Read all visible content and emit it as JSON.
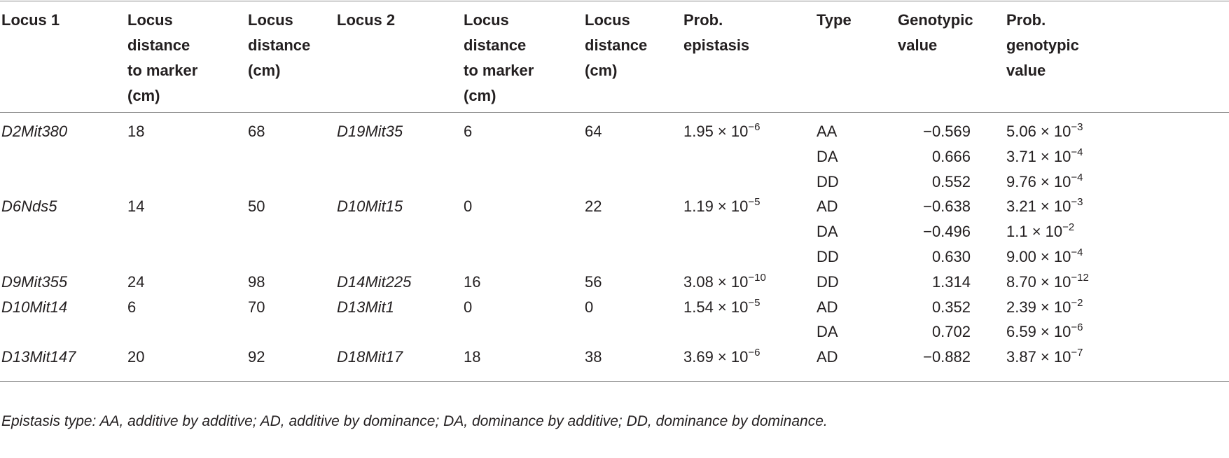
{
  "table": {
    "header": [
      [
        "Locus 1"
      ],
      [
        "Locus",
        "distance",
        "to marker",
        "(cm)"
      ],
      [
        "Locus",
        "distance",
        "(cm)"
      ],
      [
        "Locus 2"
      ],
      [
        "Locus",
        "distance",
        "to marker",
        "(cm)"
      ],
      [
        "Locus",
        "distance",
        "(cm)"
      ],
      [
        "Prob.",
        "epistasis"
      ],
      [
        "Type"
      ],
      [
        "Genotypic",
        "value"
      ],
      [
        "Prob.",
        "genotypic",
        "value"
      ]
    ],
    "groups": [
      {
        "locus1": "D2Mit380",
        "dist1": "18",
        "locdist1": "68",
        "locus2": "D19Mit35",
        "dist2": "6",
        "locdist2": "64",
        "prob_epistasis": {
          "base": "1.95 × 10",
          "exp": "−6"
        },
        "effects": [
          {
            "type": "AA",
            "value": "−0.569",
            "prob": {
              "base": "5.06 × 10",
              "exp": "−3"
            }
          },
          {
            "type": "DA",
            "value": "0.666",
            "prob": {
              "base": "3.71 × 10",
              "exp": "−4"
            }
          },
          {
            "type": "DD",
            "value": "0.552",
            "prob": {
              "base": "9.76 × 10",
              "exp": "−4"
            }
          }
        ]
      },
      {
        "locus1": "D6Nds5",
        "dist1": "14",
        "locdist1": "50",
        "locus2": "D10Mit15",
        "dist2": "0",
        "locdist2": "22",
        "prob_epistasis": {
          "base": "1.19 × 10",
          "exp": "−5"
        },
        "effects": [
          {
            "type": "AD",
            "value": "−0.638",
            "prob": {
              "base": "3.21 × 10",
              "exp": "−3"
            }
          },
          {
            "type": "DA",
            "value": "−0.496",
            "prob": {
              "base": "1.1 × 10",
              "exp": "−2"
            }
          },
          {
            "type": "DD",
            "value": "0.630",
            "prob": {
              "base": "9.00 × 10",
              "exp": "−4"
            }
          }
        ]
      },
      {
        "locus1": "D9Mit355",
        "dist1": "24",
        "locdist1": "98",
        "locus2": "D14Mit225",
        "dist2": "16",
        "locdist2": "56",
        "prob_epistasis": {
          "base": "3.08 × 10",
          "exp": "−10"
        },
        "effects": [
          {
            "type": "DD",
            "value": "1.314",
            "prob": {
              "base": "8.70 × 10",
              "exp": "−12"
            }
          }
        ]
      },
      {
        "locus1": "D10Mit14",
        "dist1": "6",
        "locdist1": "70",
        "locus2": "D13Mit1",
        "dist2": "0",
        "locdist2": "0",
        "prob_epistasis": {
          "base": "1.54 × 10",
          "exp": "−5"
        },
        "effects": [
          {
            "type": "AD",
            "value": "0.352",
            "prob": {
              "base": "2.39 × 10",
              "exp": "−2"
            }
          },
          {
            "type": "DA",
            "value": "0.702",
            "prob": {
              "base": "6.59 × 10",
              "exp": "−6"
            }
          }
        ]
      },
      {
        "locus1": "D13Mit147",
        "dist1": "20",
        "locdist1": "92",
        "locus2": "D18Mit17",
        "dist2": "18",
        "locdist2": "38",
        "prob_epistasis": {
          "base": "3.69 × 10",
          "exp": "−6"
        },
        "effects": [
          {
            "type": "AD",
            "value": "−0.882",
            "prob": {
              "base": "3.87 × 10",
              "exp": "−7"
            }
          }
        ]
      }
    ],
    "footnote": "Epistasis type: AA, additive by additive; AD, additive by dominance; DA, dominance by additive; DD, dominance by dominance."
  }
}
